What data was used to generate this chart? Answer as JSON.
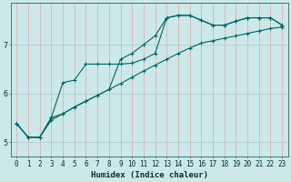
{
  "title": "",
  "xlabel": "Humidex (Indice chaleur)",
  "ylabel": "",
  "bg_color": "#cce8e8",
  "line_color": "#006666",
  "grid_color_h": "#aacccc",
  "grid_color_v": "#ddaaaa",
  "xlim": [
    -0.5,
    23.5
  ],
  "ylim": [
    4.7,
    7.85
  ],
  "yticks": [
    5,
    6,
    7
  ],
  "xticks": [
    0,
    1,
    2,
    3,
    4,
    5,
    6,
    7,
    8,
    9,
    10,
    11,
    12,
    13,
    14,
    15,
    16,
    17,
    18,
    19,
    20,
    21,
    22,
    23
  ],
  "line1_x": [
    0,
    1,
    2,
    3,
    4,
    5,
    6,
    7,
    8,
    9,
    10,
    11,
    12,
    13,
    14,
    15,
    16,
    17,
    18,
    19,
    20,
    21,
    22,
    23
  ],
  "line1_y": [
    5.38,
    5.1,
    5.1,
    5.45,
    5.58,
    5.72,
    5.84,
    5.96,
    6.08,
    6.2,
    6.33,
    6.46,
    6.58,
    6.7,
    6.82,
    6.93,
    7.03,
    7.08,
    7.13,
    7.18,
    7.23,
    7.28,
    7.33,
    7.36
  ],
  "line2_x": [
    0,
    1,
    2,
    3,
    4,
    5,
    6,
    7,
    8,
    9,
    10,
    11,
    12,
    13,
    14,
    15,
    16,
    17,
    18,
    19,
    20,
    21,
    22,
    23
  ],
  "line2_y": [
    5.38,
    5.1,
    5.1,
    5.5,
    6.22,
    6.27,
    6.6,
    6.6,
    6.6,
    6.6,
    6.62,
    6.7,
    6.82,
    7.55,
    7.6,
    7.6,
    7.5,
    7.4,
    7.4,
    7.48,
    7.55,
    7.55,
    7.55,
    7.4
  ],
  "line3_x": [
    0,
    1,
    2,
    3,
    4,
    5,
    6,
    7,
    8,
    9,
    10,
    11,
    12,
    13,
    14,
    15,
    16,
    17,
    18,
    19,
    20,
    21,
    22,
    23
  ],
  "line3_y": [
    5.38,
    5.1,
    5.1,
    5.5,
    5.58,
    5.72,
    5.84,
    5.96,
    6.08,
    6.7,
    6.82,
    7.0,
    7.18,
    7.55,
    7.6,
    7.6,
    7.5,
    7.4,
    7.4,
    7.48,
    7.55,
    7.55,
    7.55,
    7.4
  ],
  "tick_fontsize": 5.5,
  "xlabel_fontsize": 6.5,
  "marker_size": 2.5,
  "line_width": 0.8
}
